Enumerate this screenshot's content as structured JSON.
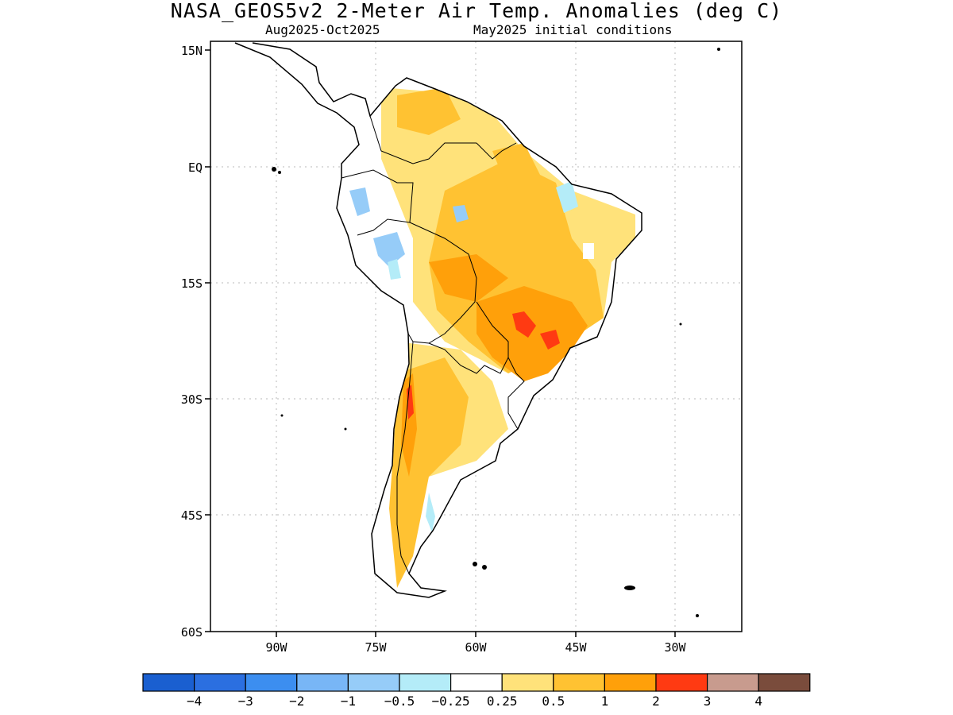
{
  "title": "NASA_GEOS5v2 2-Meter Air Temp. Anomalies (deg C)",
  "subtitle_left": "Aug2025-Oct2025",
  "subtitle_right": "May2025 initial conditions",
  "lat_labels": [
    "15N",
    "EQ",
    "15S",
    "30S",
    "45S",
    "60S"
  ],
  "lon_labels": [
    "90W",
    "75W",
    "60W",
    "45W",
    "30W"
  ],
  "colorbar": {
    "colors": [
      "#1a5fd0",
      "#2b6fe0",
      "#3c8ef0",
      "#78b6f6",
      "#96ccf8",
      "#b4ecf8",
      "#ffffff",
      "#ffe27a",
      "#ffc232",
      "#ffa00a",
      "#ff3a12",
      "#c89b8e",
      "#7a4c3c"
    ],
    "labels": [
      "-4",
      "-3",
      "-2",
      "-1",
      "-0.5",
      "-0.25",
      "0.25",
      "0.5",
      "1",
      "2",
      "3",
      "4"
    ]
  },
  "map": {
    "lat_range": [
      -60,
      15
    ],
    "lon_range": [
      -98,
      -18
    ],
    "anomaly_regions": [
      {
        "name": "brazil-northeast",
        "level": "0.25-0.5"
      },
      {
        "name": "central-brazil",
        "level": "0.5-1"
      },
      {
        "name": "southeast-brazil",
        "level": "1-2"
      },
      {
        "name": "parana-hotspot",
        "level": "2-3"
      },
      {
        "name": "andes-chile",
        "level": "2-3"
      },
      {
        "name": "patagonia",
        "level": "0.5-1"
      },
      {
        "name": "peru-ecuador",
        "level": "-0.5--0.25"
      }
    ]
  }
}
